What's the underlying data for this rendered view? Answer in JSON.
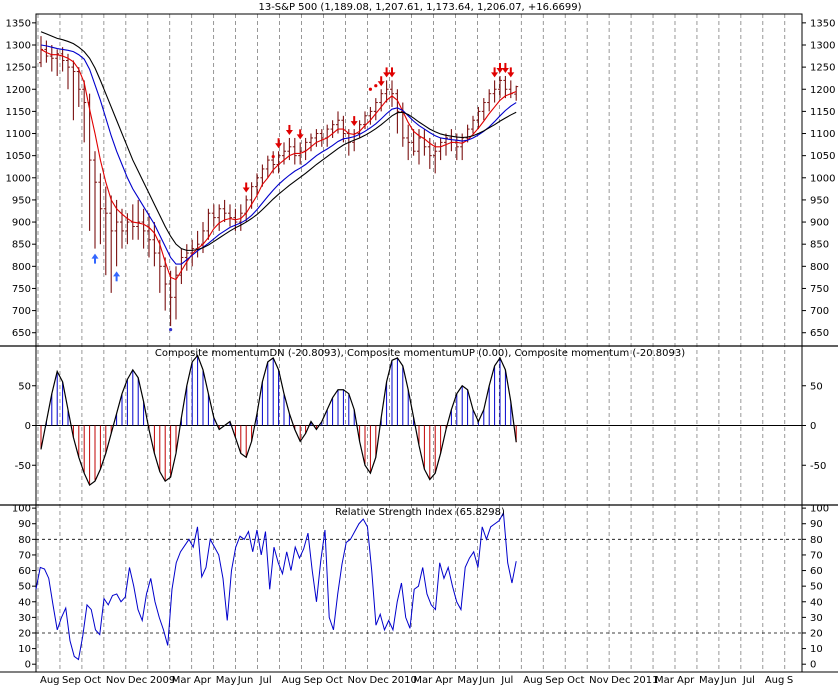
{
  "chart_data": [
    {
      "type": "candlestick",
      "title": "13-S&P 500 (1,189.08, 1,207.61, 1,173.64, 1,206.07, +16.6699)",
      "yticks": [
        1350,
        1300,
        1250,
        1200,
        1150,
        1100,
        1050,
        1000,
        950,
        900,
        850,
        800,
        750,
        700,
        650
      ],
      "ylim": [
        620,
        1370
      ],
      "bars": [
        [
          0,
          1260,
          1320,
          1250,
          1290
        ],
        [
          1,
          1290,
          1310,
          1260,
          1275
        ],
        [
          2,
          1275,
          1300,
          1240,
          1270
        ],
        [
          3,
          1270,
          1290,
          1230,
          1280
        ],
        [
          4,
          1280,
          1295,
          1240,
          1265
        ],
        [
          5,
          1265,
          1280,
          1200,
          1250
        ],
        [
          6,
          1250,
          1265,
          1130,
          1240
        ],
        [
          7,
          1240,
          1250,
          1160,
          1200
        ],
        [
          8,
          1200,
          1220,
          1080,
          1170
        ],
        [
          9,
          1170,
          1190,
          880,
          1040
        ],
        [
          10,
          1040,
          1060,
          840,
          990
        ],
        [
          11,
          990,
          1010,
          850,
          930
        ],
        [
          12,
          930,
          980,
          780,
          920
        ],
        [
          13,
          920,
          960,
          740,
          880
        ],
        [
          14,
          880,
          950,
          800,
          900
        ],
        [
          15,
          900,
          930,
          840,
          880
        ],
        [
          16,
          880,
          920,
          850,
          900
        ],
        [
          17,
          900,
          940,
          860,
          890
        ],
        [
          18,
          890,
          950,
          860,
          900
        ],
        [
          19,
          900,
          930,
          840,
          880
        ],
        [
          20,
          880,
          920,
          820,
          860
        ],
        [
          21,
          860,
          900,
          800,
          830
        ],
        [
          22,
          830,
          860,
          740,
          800
        ],
        [
          23,
          800,
          820,
          700,
          760
        ],
        [
          24,
          760,
          790,
          665,
          730
        ],
        [
          25,
          730,
          800,
          680,
          780
        ],
        [
          26,
          780,
          840,
          760,
          820
        ],
        [
          27,
          820,
          850,
          790,
          830
        ],
        [
          28,
          830,
          860,
          800,
          840
        ],
        [
          29,
          840,
          880,
          820,
          850
        ],
        [
          30,
          850,
          900,
          830,
          880
        ],
        [
          31,
          880,
          930,
          860,
          920
        ],
        [
          32,
          920,
          940,
          890,
          910
        ],
        [
          33,
          910,
          940,
          880,
          930
        ],
        [
          34,
          930,
          950,
          900,
          920
        ],
        [
          35,
          920,
          940,
          890,
          910
        ],
        [
          36,
          910,
          930,
          880,
          900
        ],
        [
          37,
          900,
          940,
          880,
          920
        ],
        [
          38,
          920,
          960,
          900,
          950
        ],
        [
          39,
          950,
          990,
          930,
          980
        ],
        [
          40,
          980,
          1010,
          960,
          1000
        ],
        [
          41,
          1000,
          1030,
          980,
          1020
        ],
        [
          42,
          1020,
          1050,
          1000,
          1040
        ],
        [
          43,
          1040,
          1060,
          1010,
          1030
        ],
        [
          44,
          1030,
          1060,
          1010,
          1050
        ],
        [
          45,
          1050,
          1080,
          1030,
          1060
        ],
        [
          46,
          1060,
          1090,
          1040,
          1070
        ],
        [
          47,
          1070,
          1090,
          1030,
          1050
        ],
        [
          48,
          1050,
          1080,
          1030,
          1060
        ],
        [
          49,
          1060,
          1090,
          1040,
          1080
        ],
        [
          50,
          1080,
          1100,
          1060,
          1090
        ],
        [
          51,
          1090,
          1110,
          1070,
          1100
        ],
        [
          52,
          1100,
          1110,
          1070,
          1090
        ],
        [
          53,
          1090,
          1120,
          1070,
          1110
        ],
        [
          54,
          1110,
          1130,
          1090,
          1120
        ],
        [
          55,
          1120,
          1150,
          1100,
          1130
        ],
        [
          56,
          1130,
          1140,
          1080,
          1100
        ],
        [
          57,
          1100,
          1110,
          1050,
          1080
        ],
        [
          58,
          1080,
          1110,
          1060,
          1100
        ],
        [
          59,
          1100,
          1130,
          1090,
          1120
        ],
        [
          60,
          1120,
          1150,
          1110,
          1140
        ],
        [
          61,
          1140,
          1160,
          1120,
          1150
        ],
        [
          62,
          1150,
          1180,
          1130,
          1170
        ],
        [
          63,
          1170,
          1200,
          1150,
          1190
        ],
        [
          64,
          1190,
          1220,
          1170,
          1200
        ],
        [
          65,
          1200,
          1220,
          1160,
          1190
        ],
        [
          66,
          1190,
          1200,
          1100,
          1150
        ],
        [
          67,
          1150,
          1170,
          1070,
          1090
        ],
        [
          68,
          1090,
          1120,
          1040,
          1080
        ],
        [
          69,
          1080,
          1110,
          1050,
          1060
        ],
        [
          70,
          1060,
          1110,
          1030,
          1090
        ],
        [
          71,
          1090,
          1110,
          1050,
          1070
        ],
        [
          72,
          1070,
          1090,
          1020,
          1050
        ],
        [
          73,
          1050,
          1080,
          1010,
          1060
        ],
        [
          74,
          1060,
          1090,
          1040,
          1080
        ],
        [
          75,
          1080,
          1100,
          1050,
          1090
        ],
        [
          76,
          1090,
          1110,
          1060,
          1080
        ],
        [
          77,
          1080,
          1100,
          1040,
          1070
        ],
        [
          78,
          1070,
          1100,
          1040,
          1090
        ],
        [
          79,
          1090,
          1120,
          1080,
          1110
        ],
        [
          80,
          1110,
          1140,
          1100,
          1130
        ],
        [
          81,
          1130,
          1160,
          1110,
          1150
        ],
        [
          82,
          1150,
          1180,
          1130,
          1170
        ],
        [
          83,
          1170,
          1200,
          1150,
          1190
        ],
        [
          84,
          1190,
          1220,
          1170,
          1200
        ],
        [
          85,
          1200,
          1230,
          1180,
          1220
        ],
        [
          86,
          1220,
          1230,
          1180,
          1200
        ],
        [
          87,
          1200,
          1220,
          1180,
          1190
        ],
        [
          88,
          1189,
          1208,
          1174,
          1206
        ]
      ],
      "series": [
        {
          "color": "#e00000",
          "values": [
            1290,
            1283,
            1278,
            1278,
            1275,
            1270,
            1262,
            1245,
            1215,
            1155,
            1100,
            1040,
            990,
            950,
            930,
            918,
            908,
            900,
            898,
            895,
            888,
            875,
            850,
            810,
            775,
            770,
            790,
            810,
            828,
            840,
            850,
            865,
            885,
            898,
            905,
            908,
            905,
            908,
            920,
            940,
            960,
            985,
            1000,
            1018,
            1030,
            1040,
            1050,
            1055,
            1055,
            1060,
            1070,
            1080,
            1085,
            1090,
            1100,
            1110,
            1110,
            1100,
            1098,
            1105,
            1118,
            1130,
            1145,
            1160,
            1175,
            1185,
            1175,
            1150,
            1125,
            1105,
            1095,
            1088,
            1078,
            1070,
            1070,
            1075,
            1080,
            1080,
            1078,
            1085,
            1098,
            1112,
            1128,
            1145,
            1160,
            1175,
            1185,
            1190,
            1195
          ]
        },
        {
          "color": "#0000cc",
          "values": [
            1300,
            1298,
            1295,
            1292,
            1290,
            1288,
            1285,
            1278,
            1268,
            1245,
            1210,
            1175,
            1135,
            1095,
            1060,
            1030,
            1000,
            975,
            955,
            935,
            915,
            895,
            870,
            845,
            820,
            805,
            805,
            815,
            825,
            835,
            843,
            852,
            862,
            872,
            880,
            888,
            893,
            898,
            905,
            915,
            928,
            943,
            958,
            972,
            985,
            996,
            1006,
            1015,
            1022,
            1030,
            1040,
            1050,
            1058,
            1065,
            1073,
            1082,
            1088,
            1090,
            1093,
            1098,
            1105,
            1113,
            1122,
            1133,
            1145,
            1155,
            1158,
            1152,
            1140,
            1128,
            1118,
            1110,
            1102,
            1095,
            1090,
            1088,
            1086,
            1085,
            1083,
            1085,
            1090,
            1097,
            1105,
            1115,
            1127,
            1140,
            1152,
            1162,
            1170
          ]
        },
        {
          "color": "#000000",
          "values": [
            1330,
            1325,
            1320,
            1315,
            1312,
            1308,
            1303,
            1295,
            1285,
            1270,
            1248,
            1220,
            1190,
            1160,
            1130,
            1100,
            1070,
            1040,
            1015,
            990,
            965,
            940,
            915,
            890,
            868,
            850,
            840,
            836,
            836,
            838,
            842,
            848,
            856,
            864,
            872,
            880,
            887,
            893,
            900,
            908,
            917,
            928,
            940,
            952,
            963,
            973,
            983,
            992,
            1001,
            1010,
            1020,
            1030,
            1039,
            1048,
            1057,
            1066,
            1074,
            1080,
            1085,
            1090,
            1096,
            1103,
            1111,
            1120,
            1130,
            1140,
            1147,
            1148,
            1143,
            1135,
            1126,
            1118,
            1110,
            1104,
            1099,
            1096,
            1094,
            1092,
            1091,
            1092,
            1095,
            1100,
            1106,
            1113,
            1120,
            1128,
            1135,
            1142,
            1148
          ]
        }
      ],
      "down_arrow_bars": [
        44,
        46,
        48,
        58,
        63,
        64,
        65,
        84,
        85,
        86,
        87
      ],
      "extra_down_arrow_bars": [
        38
      ],
      "up_arrow_bars": [
        10,
        14
      ],
      "dot_points": [
        [
          43,
          1048
        ],
        [
          61,
          1200
        ],
        [
          62,
          1208
        ],
        [
          24,
          657
        ]
      ]
    },
    {
      "type": "histogram",
      "title": "Composite momentumDN (-20.8093), Composite momentumUP (0.00), Composite momentum (-20.8093)",
      "yticks": [
        50,
        0,
        -50
      ],
      "ylim": [
        -100,
        100
      ],
      "values": [
        -30,
        5,
        40,
        68,
        55,
        20,
        -15,
        -40,
        -60,
        -75,
        -70,
        -55,
        -35,
        -10,
        15,
        40,
        58,
        70,
        60,
        30,
        -5,
        -35,
        -58,
        -70,
        -65,
        -35,
        10,
        50,
        80,
        88,
        70,
        40,
        10,
        -5,
        0,
        5,
        -15,
        -35,
        -40,
        -20,
        15,
        55,
        80,
        85,
        70,
        40,
        15,
        -5,
        -20,
        -10,
        5,
        -5,
        5,
        20,
        35,
        45,
        45,
        40,
        20,
        -20,
        -50,
        -60,
        -40,
        10,
        55,
        82,
        85,
        75,
        45,
        10,
        -25,
        -55,
        -68,
        -60,
        -35,
        -5,
        20,
        40,
        50,
        45,
        20,
        5,
        20,
        50,
        75,
        85,
        70,
        30,
        -21
      ],
      "colors": {
        "positive": "#0000cc",
        "negative": "#c00000",
        "outline": "#000000"
      }
    },
    {
      "type": "line",
      "title": "Relative Strength Index (65.8298)",
      "yticks": [
        100,
        90,
        80,
        70,
        60,
        50,
        40,
        30,
        20,
        10,
        0
      ],
      "ylim": [
        -5,
        102
      ],
      "reference_lines": [
        80,
        20
      ],
      "values": [
        48,
        62,
        61,
        55,
        38,
        22,
        30,
        36,
        15,
        5,
        3,
        18,
        38,
        35,
        22,
        19,
        42,
        38,
        44,
        45,
        40,
        43,
        62,
        50,
        35,
        28,
        45,
        55,
        40,
        30,
        22,
        12,
        48,
        65,
        72,
        76,
        80,
        75,
        88,
        56,
        62,
        80,
        75,
        70,
        55,
        28,
        60,
        75,
        82,
        80,
        85,
        72,
        86,
        70,
        85,
        48,
        75,
        65,
        58,
        72,
        60,
        75,
        68,
        74,
        84,
        60,
        40,
        66,
        86,
        30,
        22,
        45,
        64,
        78,
        80,
        85,
        90,
        93,
        88,
        60,
        25,
        32,
        22,
        28,
        22,
        40,
        52,
        30,
        23,
        48,
        50,
        62,
        45,
        38,
        35,
        65,
        55,
        62,
        50,
        40,
        35,
        62,
        68,
        72,
        62,
        88,
        80,
        88,
        90,
        92,
        97,
        65,
        52,
        66
      ]
    }
  ],
  "time_axis": {
    "labels": [
      "Aug",
      "Sep",
      "Oct",
      "Nov",
      "Dec",
      "2009",
      "Mar",
      "Apr",
      "May",
      "Jun",
      "Jul",
      "Aug",
      "Sep",
      "Oct",
      "Nov",
      "Dec",
      "2010",
      "Mar",
      "Apr",
      "May",
      "Jun",
      "Jul",
      "Aug",
      "Sep",
      "Oct",
      "Nov",
      "Dec",
      "2011",
      "Mar",
      "Apr",
      "May",
      "Jun",
      "Jul",
      "Aug",
      "S"
    ]
  }
}
